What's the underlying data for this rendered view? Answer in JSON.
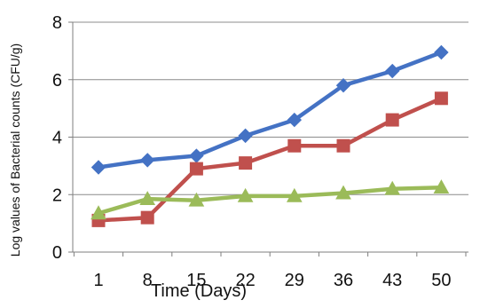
{
  "chart_data": {
    "type": "line",
    "title": "",
    "xlabel": "Time (Days)",
    "ylabel": "Log values of Bacterial counts (CFU/g)",
    "x": [
      "1",
      "8",
      "15",
      "22",
      "29",
      "36",
      "43",
      "50"
    ],
    "ylim": [
      0,
      8
    ],
    "yticks": [
      "0",
      "2",
      "4",
      "6",
      "8"
    ],
    "grid": true,
    "legend": "none",
    "series": [
      {
        "color": "#4472C4",
        "marker": "diamond",
        "values": [
          2.95,
          3.2,
          3.35,
          4.05,
          4.6,
          5.8,
          6.3,
          6.95
        ]
      },
      {
        "color": "#C0504D",
        "marker": "square",
        "values": [
          1.1,
          1.2,
          2.9,
          3.1,
          3.7,
          3.7,
          4.6,
          5.35
        ]
      },
      {
        "color": "#9BBB59",
        "marker": "triangle",
        "values": [
          1.35,
          1.85,
          1.8,
          1.95,
          1.95,
          2.05,
          2.2,
          2.25
        ]
      }
    ]
  }
}
